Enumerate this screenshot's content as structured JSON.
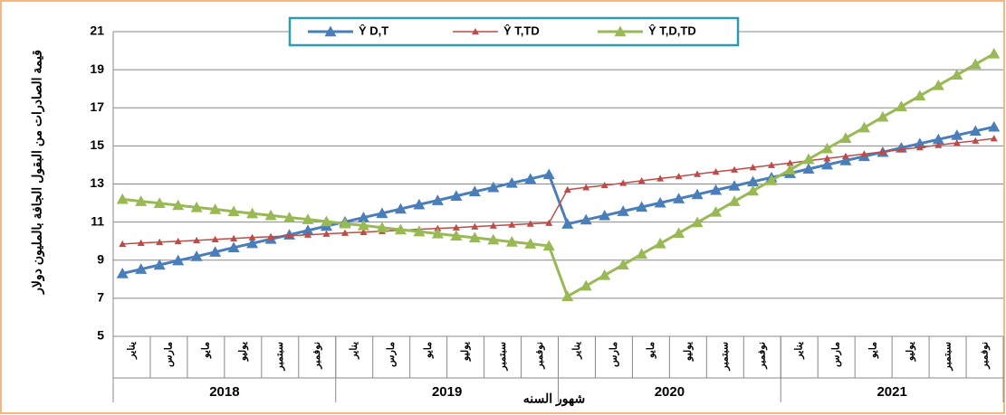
{
  "chart_data": {
    "type": "line",
    "y_label": "قيمة الصادرات من البقول الجافة بالمليون دولار",
    "x_label": "شهور السنه",
    "categories": [
      "يناير",
      null,
      "مارس",
      null,
      "مايو",
      null,
      "يوليو",
      null,
      "سبتمبر",
      null,
      "نوفمبر",
      null,
      "يناير",
      null,
      "مارس",
      null,
      "مايو",
      null,
      "يوليو",
      null,
      "سبتمبر",
      null,
      "نوفمبر",
      null,
      "يناير",
      null,
      "مارس",
      null,
      "مايو",
      null,
      "يوليو",
      null,
      "سبتمبر",
      null,
      "نوفمبر",
      null,
      "يناير",
      null,
      "مارس",
      null,
      "مايو",
      null,
      "يوليو",
      null,
      "سبتمبر",
      null,
      "نوفمبر",
      null
    ],
    "x_groups": [
      "2018",
      "2019",
      "2020",
      "2021"
    ],
    "ylim": [
      5,
      21
    ],
    "yticks": [
      5,
      7,
      9,
      11,
      13,
      15,
      17,
      19,
      21
    ],
    "grid": true,
    "series": [
      {
        "name": "Ŷ D,T",
        "color": "#4a7ebb",
        "values": [
          8.3,
          8.53,
          8.75,
          8.98,
          9.2,
          9.43,
          9.66,
          9.88,
          10.11,
          10.33,
          10.56,
          10.79,
          11.01,
          11.24,
          11.46,
          11.69,
          11.92,
          12.14,
          12.37,
          12.6,
          12.82,
          13.05,
          13.27,
          13.5,
          10.9,
          11.12,
          11.34,
          11.57,
          11.79,
          12.01,
          12.23,
          12.45,
          12.68,
          12.9,
          13.12,
          13.34,
          13.56,
          13.79,
          14.01,
          14.23,
          14.45,
          14.67,
          14.9,
          15.12,
          15.34,
          15.56,
          15.78,
          16.0
        ]
      },
      {
        "name": "Ŷ T,TD",
        "color": "#be4b48",
        "values": [
          9.85,
          9.9,
          9.95,
          9.99,
          10.04,
          10.09,
          10.14,
          10.19,
          10.23,
          10.28,
          10.33,
          10.38,
          10.43,
          10.47,
          10.52,
          10.57,
          10.62,
          10.67,
          10.71,
          10.76,
          10.81,
          10.86,
          10.91,
          10.95,
          12.7,
          12.82,
          12.93,
          13.05,
          13.17,
          13.29,
          13.4,
          13.52,
          13.64,
          13.75,
          13.87,
          13.99,
          14.1,
          14.22,
          14.34,
          14.46,
          14.57,
          14.69,
          14.81,
          14.92,
          15.04,
          15.16,
          15.27,
          15.39
        ]
      },
      {
        "name": "Ŷ T,D,TD",
        "color": "#98b954",
        "values": [
          12.2,
          12.09,
          11.99,
          11.88,
          11.77,
          11.67,
          11.56,
          11.45,
          11.35,
          11.24,
          11.14,
          11.03,
          10.92,
          10.82,
          10.71,
          10.6,
          10.5,
          10.39,
          10.28,
          10.18,
          10.07,
          9.96,
          9.86,
          9.75,
          7.1,
          7.65,
          8.21,
          8.76,
          9.32,
          9.87,
          10.42,
          10.98,
          11.53,
          12.09,
          12.64,
          13.19,
          13.75,
          14.3,
          14.86,
          15.41,
          15.96,
          16.52,
          17.07,
          17.63,
          18.18,
          18.73,
          19.29,
          19.84
        ]
      }
    ]
  }
}
